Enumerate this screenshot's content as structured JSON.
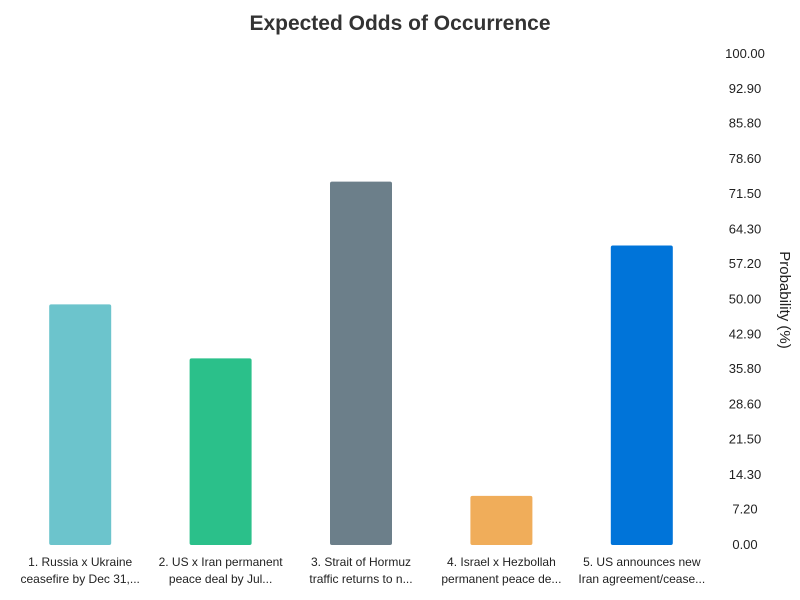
{
  "chart_data": {
    "type": "bar",
    "title": "Expected Odds of Occurrence",
    "ylabel": "Probability (%)",
    "xlabel": "",
    "ylim": [
      0,
      100
    ],
    "y_axis_position": "right",
    "grid": false,
    "y_ticks": [
      "0.00",
      "7.20",
      "14.30",
      "21.50",
      "28.60",
      "35.80",
      "42.90",
      "50.00",
      "57.20",
      "64.30",
      "71.50",
      "78.60",
      "85.80",
      "92.90",
      "100.00"
    ],
    "categories": [
      [
        "1. Russia x Ukraine",
        "ceasefire by Dec 31,..."
      ],
      [
        "2. US x Iran permanent",
        "peace deal by Jul..."
      ],
      [
        "3. Strait of Hormuz",
        "traffic returns to n..."
      ],
      [
        "4. Israel x Hezbollah",
        "permanent peace de..."
      ],
      [
        "5. US announces new",
        "Iran agreement/cease..."
      ]
    ],
    "values": [
      49,
      38,
      74,
      10,
      61
    ],
    "colors": [
      "#6cc4cc",
      "#2bc08a",
      "#6c7f8a",
      "#f0ad5a",
      "#0074d9"
    ]
  }
}
